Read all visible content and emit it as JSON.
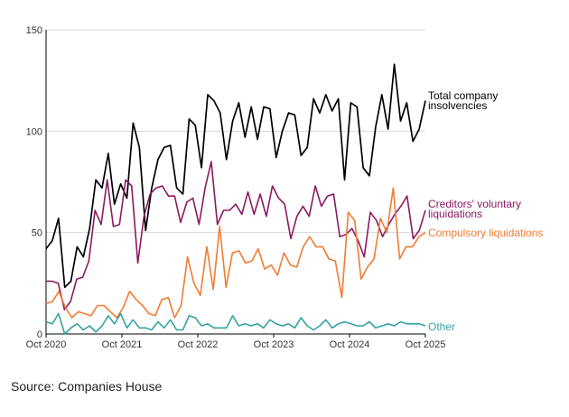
{
  "chart_data": {
    "type": "line",
    "xlabel": "",
    "ylabel": "",
    "ylim": [
      0,
      150
    ],
    "yticks": [
      0,
      50,
      100,
      150
    ],
    "grid": "horizontal",
    "x_tick_labels": [
      "Oct 2020",
      "Oct 2021",
      "Oct 2022",
      "Oct 2023",
      "Oct 2024",
      "Oct 2025"
    ],
    "x_start": "Oct 2020",
    "x_end": "Oct 2025",
    "series": [
      {
        "name": "Total company insolvencies",
        "color": "#000000",
        "values": [
          42,
          46,
          57,
          23,
          26,
          43,
          38,
          52,
          76,
          72,
          89,
          64,
          74,
          67,
          104,
          92,
          51,
          72,
          86,
          92,
          93,
          72,
          69,
          106,
          103,
          82,
          118,
          115,
          109,
          86,
          105,
          114,
          97,
          112,
          96,
          112,
          111,
          87,
          100,
          109,
          108,
          88,
          92,
          116,
          109,
          118,
          110,
          116,
          76,
          114,
          112,
          82,
          78,
          102,
          118,
          101,
          133,
          105,
          114,
          95,
          101,
          115
        ]
      },
      {
        "name": "Creditors' voluntary liquidations",
        "color": "#8b1a61",
        "values": [
          26,
          26,
          25,
          12,
          16,
          27,
          28,
          36,
          61,
          54,
          76,
          53,
          54,
          76,
          73,
          35,
          58,
          69,
          72,
          73,
          68,
          68,
          55,
          65,
          67,
          54,
          72,
          85,
          54,
          61,
          61,
          64,
          59,
          70,
          59,
          69,
          58,
          73,
          67,
          64,
          47,
          58,
          63,
          58,
          73,
          63,
          68,
          69,
          48,
          49,
          52,
          46,
          38,
          60,
          56,
          48,
          54,
          59,
          63,
          68,
          47,
          51,
          61
        ]
      },
      {
        "name": "Compulsory liquidations",
        "color": "#f07c35",
        "values": [
          15,
          16,
          21,
          13,
          8,
          11,
          10,
          9,
          14,
          14,
          11,
          8,
          13,
          21,
          17,
          14,
          10,
          9,
          17,
          18,
          8,
          14,
          38,
          25,
          19,
          43,
          22,
          53,
          23,
          40,
          41,
          35,
          36,
          42,
          32,
          34,
          29,
          40,
          34,
          33,
          43,
          48,
          43,
          43,
          37,
          36,
          18,
          60,
          56,
          27,
          33,
          37,
          57,
          50,
          72,
          37,
          43,
          43,
          48,
          50
        ]
      },
      {
        "name": "Other",
        "color": "#33a3a0",
        "values": [
          6,
          5,
          10,
          0,
          3,
          5,
          2,
          4,
          1,
          4,
          9,
          5,
          10,
          3,
          7,
          3,
          3,
          2,
          6,
          3,
          7,
          2,
          2,
          9,
          8,
          4,
          5,
          3,
          3,
          3,
          9,
          4,
          5,
          4,
          5,
          3,
          7,
          5,
          4,
          5,
          3,
          8,
          4,
          2,
          4,
          7,
          3,
          5,
          6,
          5,
          4,
          4,
          6,
          3,
          4,
          5,
          4,
          6,
          5,
          5,
          5,
          4
        ]
      }
    ]
  },
  "labels": {
    "total": [
      "Total company",
      "insolvencies"
    ],
    "cvl": [
      "Creditors' voluntary",
      "liquidations"
    ],
    "compulsory": "Compulsory liquidations",
    "other": "Other"
  },
  "source": "Source: Companies House"
}
